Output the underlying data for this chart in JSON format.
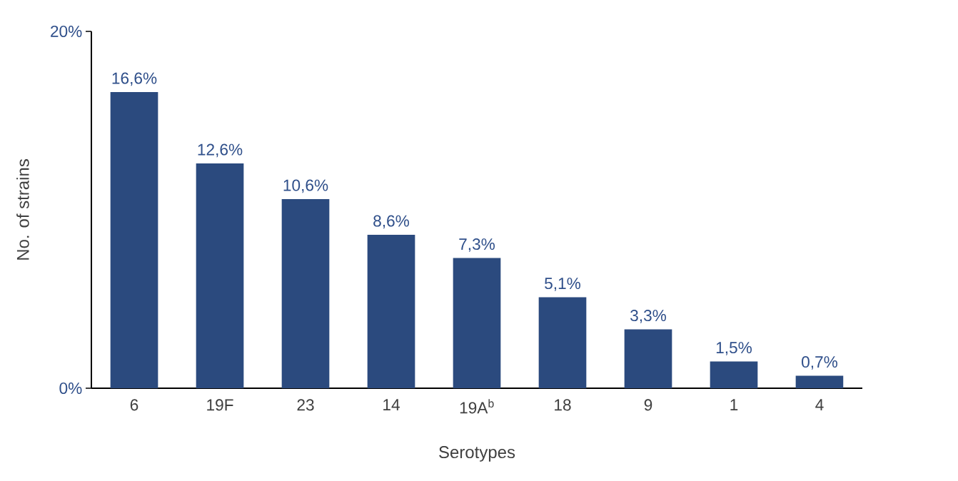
{
  "chart_data": {
    "type": "bar",
    "categories": [
      "6",
      "19F",
      "23",
      "14",
      "19A$^{b}$",
      "18",
      "9",
      "1",
      "4"
    ],
    "values": [
      16.6,
      12.6,
      10.6,
      8.6,
      7.3,
      5.1,
      3.3,
      1.5,
      0.7
    ],
    "value_labels": [
      "16,6%",
      "12,6%",
      "10,6%",
      "8,6%",
      "7,3%",
      "5,1%",
      "3,3%",
      "1,5%",
      "0,7%"
    ],
    "color": "#2b4a7e",
    "ylim": [
      0,
      20
    ],
    "yticks": [
      {
        "value": 0,
        "label": "0%"
      },
      {
        "value": 20,
        "label": "20%"
      }
    ],
    "xlabel": "Serotypes",
    "ylabel": "No. of strains"
  }
}
